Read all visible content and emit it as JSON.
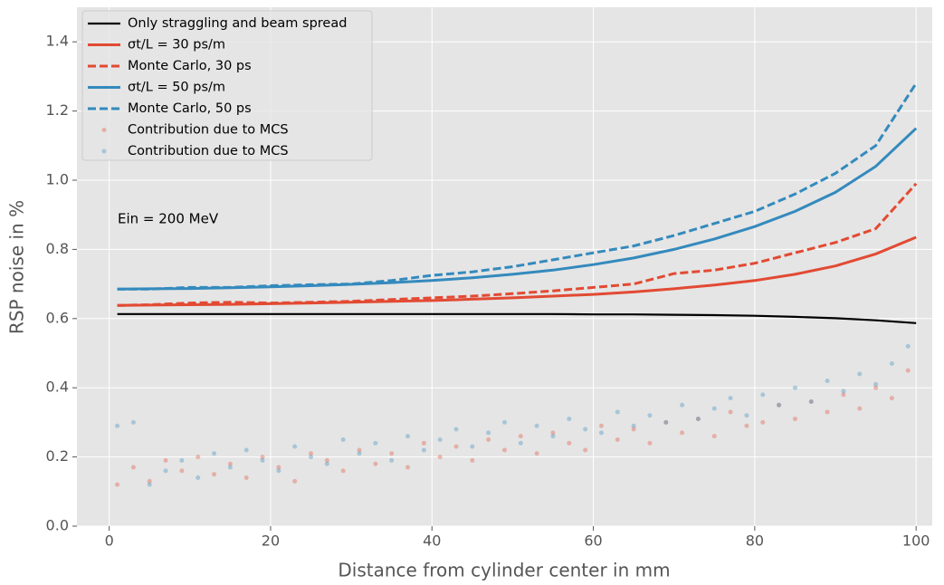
{
  "chart_data": {
    "type": "line",
    "x_label": "Distance from cylinder center in mm",
    "y_label": "RSP noise in %",
    "annotation": "Ein = 200 MeV",
    "xlim": [
      -4,
      102
    ],
    "ylim": [
      0,
      1.5
    ],
    "xticks": [
      0,
      20,
      40,
      60,
      80,
      100
    ],
    "yticks": [
      {
        "value": 0,
        "label": "0.0"
      },
      0.2,
      0.4,
      0.6,
      0.8,
      {
        "value": 1,
        "label": "1.0"
      },
      1.2,
      1.4
    ],
    "grid": true,
    "legend": "upper left",
    "series": [
      {
        "name": "Only straggling and beam spread",
        "color": "#000000",
        "type": "line",
        "linestyle": "solid",
        "x": [
          1,
          5,
          10,
          15,
          20,
          25,
          30,
          35,
          40,
          45,
          50,
          55,
          60,
          65,
          70,
          75,
          80,
          85,
          90,
          95,
          100
        ],
        "values": [
          0.613,
          0.613,
          0.613,
          0.613,
          0.613,
          0.613,
          0.613,
          0.613,
          0.613,
          0.613,
          0.613,
          0.613,
          0.612,
          0.612,
          0.611,
          0.61,
          0.608,
          0.605,
          0.601,
          0.595,
          0.587
        ]
      },
      {
        "name": "σt/L = 30 ps/m",
        "color": "#e24a33",
        "type": "line",
        "linestyle": "solid",
        "x": [
          1,
          5,
          10,
          15,
          20,
          25,
          30,
          35,
          40,
          45,
          50,
          55,
          60,
          65,
          70,
          75,
          80,
          85,
          90,
          95,
          100
        ],
        "values": [
          0.638,
          0.639,
          0.64,
          0.641,
          0.643,
          0.645,
          0.647,
          0.65,
          0.652,
          0.656,
          0.66,
          0.665,
          0.67,
          0.677,
          0.686,
          0.697,
          0.71,
          0.728,
          0.752,
          0.787,
          0.835
        ]
      },
      {
        "name": "Monte Carlo, 30 ps",
        "color": "#e24a33",
        "type": "line",
        "linestyle": "dashed",
        "x": [
          1,
          5,
          10,
          15,
          20,
          25,
          30,
          35,
          40,
          45,
          50,
          55,
          60,
          65,
          70,
          75,
          80,
          85,
          90,
          95,
          100
        ],
        "values": [
          0.638,
          0.64,
          0.645,
          0.647,
          0.645,
          0.647,
          0.65,
          0.655,
          0.66,
          0.665,
          0.672,
          0.68,
          0.69,
          0.7,
          0.73,
          0.74,
          0.76,
          0.79,
          0.82,
          0.86,
          0.99
        ]
      },
      {
        "name": "σt/L = 50 ps/m",
        "color": "#348abd",
        "type": "line",
        "linestyle": "solid",
        "x": [
          1,
          5,
          10,
          15,
          20,
          25,
          30,
          35,
          40,
          45,
          50,
          55,
          60,
          65,
          70,
          75,
          80,
          85,
          90,
          95,
          100
        ],
        "values": [
          0.685,
          0.686,
          0.687,
          0.689,
          0.692,
          0.695,
          0.699,
          0.704,
          0.71,
          0.718,
          0.728,
          0.74,
          0.756,
          0.775,
          0.8,
          0.83,
          0.866,
          0.91,
          0.965,
          1.04,
          1.15
        ]
      },
      {
        "name": "Monte Carlo, 50 ps",
        "color": "#348abd",
        "type": "line",
        "linestyle": "dashed",
        "x": [
          1,
          5,
          10,
          15,
          20,
          25,
          30,
          35,
          40,
          45,
          50,
          55,
          60,
          65,
          70,
          75,
          80,
          85,
          90,
          95,
          100
        ],
        "values": [
          0.685,
          0.685,
          0.69,
          0.69,
          0.695,
          0.698,
          0.7,
          0.71,
          0.725,
          0.735,
          0.75,
          0.77,
          0.79,
          0.81,
          0.84,
          0.875,
          0.91,
          0.96,
          1.02,
          1.1,
          1.28
        ]
      },
      {
        "name": "Contribution due to MCS",
        "color": "#e24a33",
        "type": "scatter",
        "x": [
          1,
          3,
          5,
          7,
          9,
          11,
          13,
          15,
          17,
          19,
          21,
          23,
          25,
          27,
          29,
          31,
          33,
          35,
          37,
          39,
          41,
          43,
          45,
          47,
          49,
          51,
          53,
          55,
          57,
          59,
          61,
          63,
          65,
          67,
          69,
          71,
          73,
          75,
          77,
          79,
          81,
          83,
          85,
          87,
          89,
          91,
          93,
          95,
          97,
          99
        ],
        "values": [
          0.12,
          0.17,
          0.13,
          0.19,
          0.16,
          0.2,
          0.15,
          0.18,
          0.14,
          0.2,
          0.17,
          0.13,
          0.21,
          0.19,
          0.16,
          0.22,
          0.18,
          0.21,
          0.17,
          0.24,
          0.2,
          0.23,
          0.19,
          0.25,
          0.22,
          0.26,
          0.21,
          0.27,
          0.24,
          0.22,
          0.29,
          0.25,
          0.28,
          0.24,
          0.3,
          0.27,
          0.31,
          0.26,
          0.33,
          0.29,
          0.3,
          0.35,
          0.31,
          0.36,
          0.33,
          0.38,
          0.34,
          0.4,
          0.37,
          0.45
        ]
      },
      {
        "name": "Contribution due to MCS",
        "color": "#348abd",
        "type": "scatter",
        "x": [
          1,
          3,
          5,
          7,
          9,
          11,
          13,
          15,
          17,
          19,
          21,
          23,
          25,
          27,
          29,
          31,
          33,
          35,
          37,
          39,
          41,
          43,
          45,
          47,
          49,
          51,
          53,
          55,
          57,
          59,
          61,
          63,
          65,
          67,
          69,
          71,
          73,
          75,
          77,
          79,
          81,
          83,
          85,
          87,
          89,
          91,
          93,
          95,
          97,
          99
        ],
        "values": [
          0.29,
          0.3,
          0.12,
          0.16,
          0.19,
          0.14,
          0.21,
          0.17,
          0.22,
          0.19,
          0.16,
          0.23,
          0.2,
          0.18,
          0.25,
          0.21,
          0.24,
          0.19,
          0.26,
          0.22,
          0.25,
          0.28,
          0.23,
          0.27,
          0.3,
          0.24,
          0.29,
          0.26,
          0.31,
          0.28,
          0.27,
          0.33,
          0.29,
          0.32,
          0.3,
          0.35,
          0.31,
          0.34,
          0.37,
          0.32,
          0.38,
          0.35,
          0.4,
          0.36,
          0.42,
          0.39,
          0.44,
          0.41,
          0.47,
          0.52
        ]
      }
    ]
  }
}
